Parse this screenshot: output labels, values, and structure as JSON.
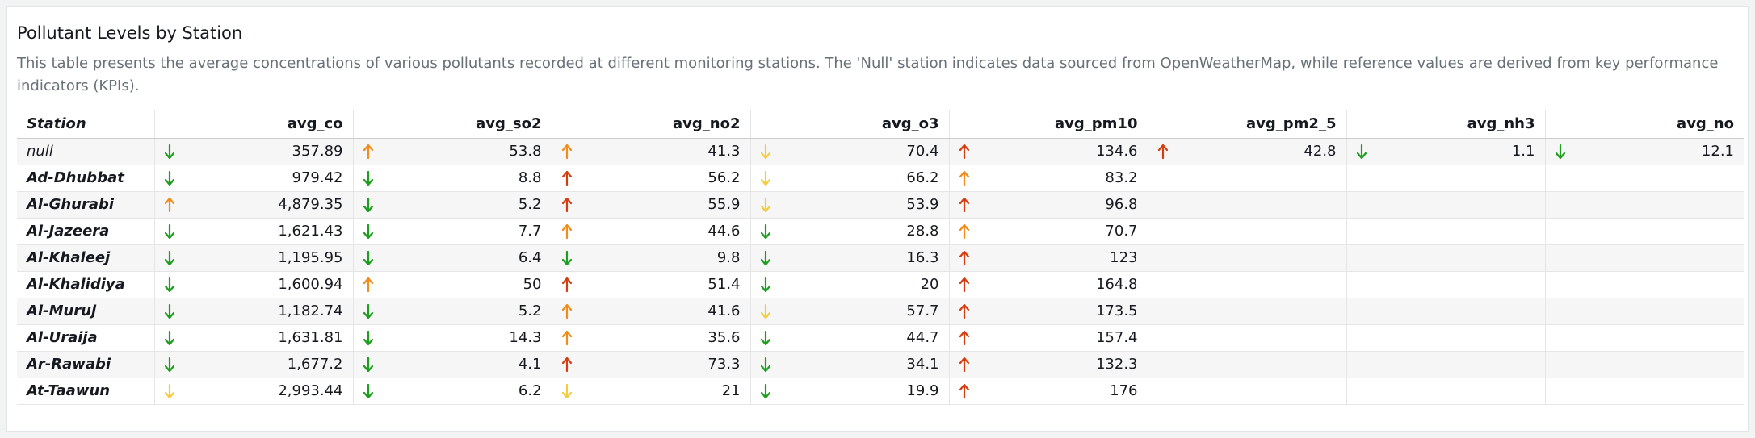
{
  "panel": {
    "title": "Pollutant Levels by Station",
    "subtitle": "This table presents the average concentrations of various pollutants recorded at different monitoring stations. The 'Null' station indicates data sourced from OpenWeatherMap, while reference values are derived from key performance indicators (KPIs)."
  },
  "colors": {
    "green": "#1e9e1e",
    "orange": "#f08c1a",
    "red": "#d33e10",
    "yellow": "#f5cd3c"
  },
  "table": {
    "columns": [
      "Station",
      "avg_co",
      "avg_so2",
      "avg_no2",
      "avg_o3",
      "avg_pm10",
      "avg_pm2_5",
      "avg_nh3",
      "avg_no"
    ],
    "rows": [
      {
        "station": "null",
        "plain": true,
        "cells": [
          {
            "value": "357.89",
            "trend": "down",
            "color": "green"
          },
          {
            "value": "53.8",
            "trend": "up",
            "color": "orange"
          },
          {
            "value": "41.3",
            "trend": "up",
            "color": "orange"
          },
          {
            "value": "70.4",
            "trend": "down",
            "color": "yellow"
          },
          {
            "value": "134.6",
            "trend": "up",
            "color": "red"
          },
          {
            "value": "42.8",
            "trend": "up",
            "color": "red"
          },
          {
            "value": "1.1",
            "trend": "down",
            "color": "green"
          },
          {
            "value": "12.1",
            "trend": "down",
            "color": "green"
          }
        ]
      },
      {
        "station": "Ad-Dhubbat",
        "cells": [
          {
            "value": "979.42",
            "trend": "down",
            "color": "green"
          },
          {
            "value": "8.8",
            "trend": "down",
            "color": "green"
          },
          {
            "value": "56.2",
            "trend": "up",
            "color": "red"
          },
          {
            "value": "66.2",
            "trend": "down",
            "color": "yellow"
          },
          {
            "value": "83.2",
            "trend": "up",
            "color": "orange"
          },
          null,
          null,
          null
        ]
      },
      {
        "station": "Al-Ghurabi",
        "cells": [
          {
            "value": "4,879.35",
            "trend": "up",
            "color": "orange"
          },
          {
            "value": "5.2",
            "trend": "down",
            "color": "green"
          },
          {
            "value": "55.9",
            "trend": "up",
            "color": "red"
          },
          {
            "value": "53.9",
            "trend": "down",
            "color": "yellow"
          },
          {
            "value": "96.8",
            "trend": "up",
            "color": "red"
          },
          null,
          null,
          null
        ]
      },
      {
        "station": "Al-Jazeera",
        "cells": [
          {
            "value": "1,621.43",
            "trend": "down",
            "color": "green"
          },
          {
            "value": "7.7",
            "trend": "down",
            "color": "green"
          },
          {
            "value": "44.6",
            "trend": "up",
            "color": "orange"
          },
          {
            "value": "28.8",
            "trend": "down",
            "color": "green"
          },
          {
            "value": "70.7",
            "trend": "up",
            "color": "orange"
          },
          null,
          null,
          null
        ]
      },
      {
        "station": "Al-Khaleej",
        "cells": [
          {
            "value": "1,195.95",
            "trend": "down",
            "color": "green"
          },
          {
            "value": "6.4",
            "trend": "down",
            "color": "green"
          },
          {
            "value": "9.8",
            "trend": "down",
            "color": "green"
          },
          {
            "value": "16.3",
            "trend": "down",
            "color": "green"
          },
          {
            "value": "123",
            "trend": "up",
            "color": "red"
          },
          null,
          null,
          null
        ]
      },
      {
        "station": "Al-Khalidiya",
        "cells": [
          {
            "value": "1,600.94",
            "trend": "down",
            "color": "green"
          },
          {
            "value": "50",
            "trend": "up",
            "color": "orange"
          },
          {
            "value": "51.4",
            "trend": "up",
            "color": "red"
          },
          {
            "value": "20",
            "trend": "down",
            "color": "green"
          },
          {
            "value": "164.8",
            "trend": "up",
            "color": "red"
          },
          null,
          null,
          null
        ]
      },
      {
        "station": "Al-Muruj",
        "cells": [
          {
            "value": "1,182.74",
            "trend": "down",
            "color": "green"
          },
          {
            "value": "5.2",
            "trend": "down",
            "color": "green"
          },
          {
            "value": "41.6",
            "trend": "up",
            "color": "orange"
          },
          {
            "value": "57.7",
            "trend": "down",
            "color": "yellow"
          },
          {
            "value": "173.5",
            "trend": "up",
            "color": "red"
          },
          null,
          null,
          null
        ]
      },
      {
        "station": "Al-Uraija",
        "cells": [
          {
            "value": "1,631.81",
            "trend": "down",
            "color": "green"
          },
          {
            "value": "14.3",
            "trend": "down",
            "color": "green"
          },
          {
            "value": "35.6",
            "trend": "up",
            "color": "orange"
          },
          {
            "value": "44.7",
            "trend": "down",
            "color": "green"
          },
          {
            "value": "157.4",
            "trend": "up",
            "color": "red"
          },
          null,
          null,
          null
        ]
      },
      {
        "station": "Ar-Rawabi",
        "cells": [
          {
            "value": "1,677.2",
            "trend": "down",
            "color": "green"
          },
          {
            "value": "4.1",
            "trend": "down",
            "color": "green"
          },
          {
            "value": "73.3",
            "trend": "up",
            "color": "red"
          },
          {
            "value": "34.1",
            "trend": "down",
            "color": "green"
          },
          {
            "value": "132.3",
            "trend": "up",
            "color": "red"
          },
          null,
          null,
          null
        ]
      },
      {
        "station": "At-Taawun",
        "cells": [
          {
            "value": "2,993.44",
            "trend": "down",
            "color": "yellow"
          },
          {
            "value": "6.2",
            "trend": "down",
            "color": "green"
          },
          {
            "value": "21",
            "trend": "down",
            "color": "yellow"
          },
          {
            "value": "19.9",
            "trend": "down",
            "color": "green"
          },
          {
            "value": "176",
            "trend": "up",
            "color": "red"
          },
          null,
          null,
          null
        ]
      }
    ]
  }
}
